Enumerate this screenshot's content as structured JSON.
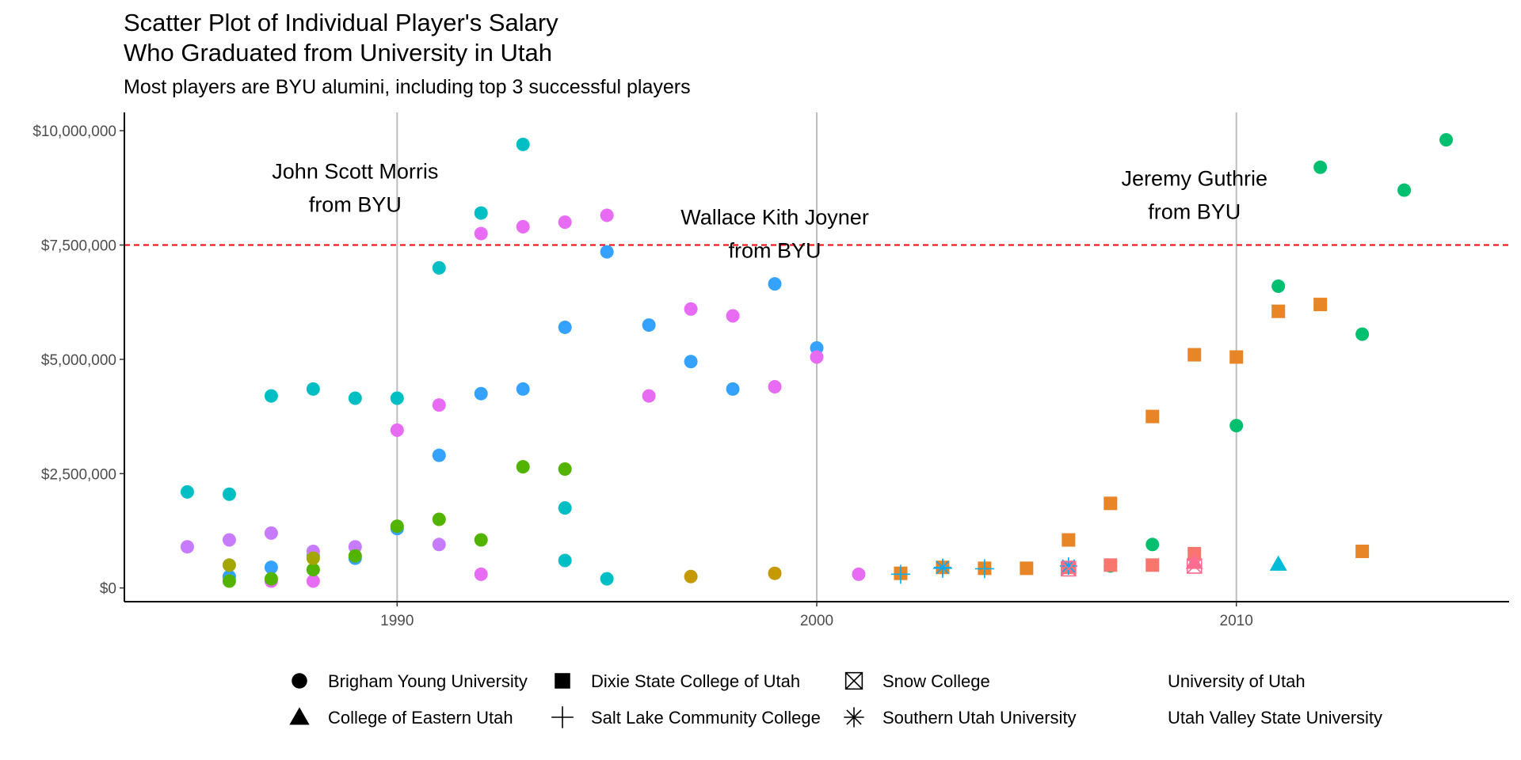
{
  "chart_data": {
    "type": "scatter",
    "title": "Scatter Plot of Individual Player's Salary\nWho Graduated from University in Utah",
    "title_lines": [
      "Scatter Plot of Individual Player's Salary",
      "Who Graduated from University in Utah"
    ],
    "subtitle": "Most players are BYU alumini, including top 3 successful players",
    "xlim": [
      1983.5,
      2016.5
    ],
    "ylim": [
      -300000,
      10400000
    ],
    "x_ticks": [
      1990,
      2000,
      2010
    ],
    "x_tick_labels": [
      "1990",
      "2000",
      "2010"
    ],
    "y_ticks": [
      0,
      2500000,
      5000000,
      7500000,
      10000000
    ],
    "y_tick_labels": [
      "$0",
      "$2,500,000",
      "$5,000,000",
      "$7,500,000",
      "$10,000,000"
    ],
    "vlines": [
      1990,
      2000,
      2010
    ],
    "hline": {
      "y": 7500000,
      "color": "#ff0000",
      "style": "dashed"
    },
    "grid": false,
    "legend_position": "bottom",
    "annotations": [
      {
        "text_lines": [
          "John Scott Morris",
          "from BYU"
        ],
        "x": 1989,
        "y": 8950000
      },
      {
        "text_lines": [
          "Wallace Kith Joyner",
          "from BYU"
        ],
        "x": 1999,
        "y": 7950000
      },
      {
        "text_lines": [
          "Jeremy Guthrie",
          "from BYU"
        ],
        "x": 2009,
        "y": 8800000
      }
    ],
    "shape_legend": [
      {
        "label": "Brigham Young University",
        "shape": "circle"
      },
      {
        "label": "College of Eastern Utah",
        "shape": "triangle"
      },
      {
        "label": "Dixie State College of Utah",
        "shape": "square"
      },
      {
        "label": "Salt Lake Community College",
        "shape": "plus"
      },
      {
        "label": "Snow College",
        "shape": "boxcross"
      },
      {
        "label": "Southern Utah University",
        "shape": "asterisk"
      },
      {
        "label": "University of Utah",
        "shape": "none"
      },
      {
        "label": "Utah Valley State University",
        "shape": "none"
      }
    ],
    "series": [
      {
        "color": "#00BFC4",
        "shape": "circle",
        "points": [
          [
            1985,
            2100000
          ],
          [
            1986,
            2050000
          ],
          [
            1987,
            4200000
          ],
          [
            1988,
            4350000
          ],
          [
            1989,
            4150000
          ],
          [
            1990,
            4150000
          ],
          [
            1991,
            7000000
          ],
          [
            1992,
            8200000
          ],
          [
            1993,
            9700000
          ],
          [
            1994,
            1750000
          ],
          [
            1994,
            600000
          ],
          [
            1995,
            200000
          ]
        ]
      },
      {
        "color": "#35A2FF",
        "shape": "circle",
        "points": [
          [
            1986,
            250000
          ],
          [
            1987,
            450000
          ],
          [
            1988,
            700000
          ],
          [
            1989,
            650000
          ],
          [
            1990,
            1300000
          ],
          [
            1991,
            2900000
          ],
          [
            1992,
            4250000
          ],
          [
            1993,
            4350000
          ],
          [
            1994,
            5700000
          ],
          [
            1995,
            7350000
          ],
          [
            1996,
            5750000
          ],
          [
            1997,
            4950000
          ],
          [
            1998,
            4350000
          ],
          [
            1999,
            6650000
          ],
          [
            2000,
            5250000
          ]
        ]
      },
      {
        "color": "#E76BF3",
        "shape": "circle",
        "points": [
          [
            1987,
            150000
          ],
          [
            1988,
            150000
          ],
          [
            1990,
            3450000
          ],
          [
            1991,
            4000000
          ],
          [
            1992,
            7750000
          ],
          [
            1992,
            300000
          ],
          [
            1993,
            7900000
          ],
          [
            1994,
            8000000
          ],
          [
            1995,
            8150000
          ],
          [
            1996,
            4200000
          ],
          [
            1997,
            6100000
          ],
          [
            1998,
            5950000
          ],
          [
            1999,
            4400000
          ],
          [
            2000,
            5050000
          ],
          [
            2001,
            300000
          ]
        ]
      },
      {
        "color": "#C77CFF",
        "shape": "circle",
        "points": [
          [
            1985,
            900000
          ],
          [
            1986,
            1050000
          ],
          [
            1987,
            1200000
          ],
          [
            1988,
            800000
          ],
          [
            1989,
            900000
          ],
          [
            1991,
            950000
          ]
        ]
      },
      {
        "color": "#53B400",
        "shape": "circle",
        "points": [
          [
            1986,
            150000
          ],
          [
            1987,
            200000
          ],
          [
            1988,
            400000
          ],
          [
            1989,
            700000
          ],
          [
            1990,
            1350000
          ],
          [
            1991,
            1500000
          ],
          [
            1992,
            1050000
          ],
          [
            1993,
            2650000
          ],
          [
            1994,
            2600000
          ]
        ]
      },
      {
        "color": "#A3A500",
        "shape": "circle",
        "points": [
          [
            1986,
            500000
          ],
          [
            1988,
            650000
          ]
        ]
      },
      {
        "color": "#C49A00",
        "shape": "circle",
        "points": [
          [
            1997,
            250000
          ],
          [
            1999,
            320000
          ]
        ]
      },
      {
        "color": "#00C070",
        "shape": "circle",
        "points": [
          [
            2007,
            480000
          ],
          [
            2008,
            950000
          ],
          [
            2010,
            3550000
          ],
          [
            2011,
            6600000
          ],
          [
            2012,
            9200000
          ],
          [
            2013,
            5550000
          ],
          [
            2014,
            8700000
          ],
          [
            2015,
            9800000
          ]
        ]
      },
      {
        "color": "#E88526",
        "shape": "square",
        "points": [
          [
            2002,
            320000
          ],
          [
            2003,
            450000
          ],
          [
            2004,
            430000
          ],
          [
            2005,
            430000
          ],
          [
            2006,
            1050000
          ],
          [
            2007,
            1850000
          ],
          [
            2008,
            3750000
          ],
          [
            2009,
            5100000
          ],
          [
            2010,
            5050000
          ],
          [
            2011,
            6050000
          ],
          [
            2012,
            6200000
          ],
          [
            2013,
            800000
          ]
        ]
      },
      {
        "color": "#F8766D",
        "shape": "square",
        "points": [
          [
            2006,
            450000
          ],
          [
            2007,
            500000
          ],
          [
            2008,
            500000
          ],
          [
            2009,
            750000
          ]
        ]
      },
      {
        "color": "#00B0F6",
        "shape": "plus",
        "points": [
          [
            2002,
            300000
          ],
          [
            2003,
            430000
          ],
          [
            2004,
            420000
          ]
        ]
      },
      {
        "color": "#00A9FF",
        "shape": "asterisk",
        "points": [
          [
            2003,
            450000
          ],
          [
            2006,
            480000
          ]
        ]
      },
      {
        "color": "#FF6C91",
        "shape": "boxcross",
        "points": [
          [
            2006,
            420000
          ],
          [
            2009,
            480000
          ]
        ]
      },
      {
        "color": "#FF6C91",
        "shape": "triangle",
        "points": [
          [
            2009,
            560000
          ]
        ]
      },
      {
        "color": "#00BCD8",
        "shape": "triangle",
        "points": [
          [
            2011,
            520000
          ]
        ]
      }
    ]
  }
}
